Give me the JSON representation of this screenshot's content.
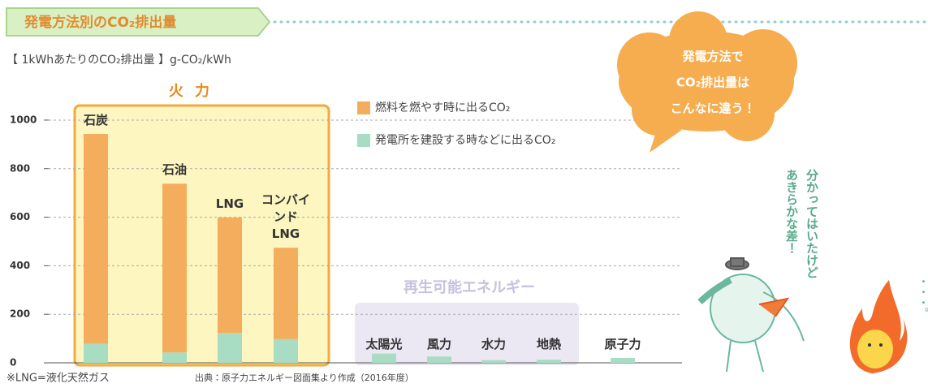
{
  "chart_data": {
    "type": "stacked_bar",
    "title": "発電方法別のCO₂排出量",
    "subtitle": "【 1kWhあたりのCO₂排出量 】g-CO₂/kWh",
    "group_labels": [
      "火力",
      "再生可能エネルギー"
    ],
    "categories": [
      "石炭",
      "石油",
      "LNG",
      "コンバインドLNG",
      "太陽光",
      "風力",
      "水力",
      "地熱",
      "原子力"
    ],
    "series": [
      {
        "name": "燃料を燃やす時に出るCO₂",
        "color": "#f4ad5c",
        "values": [
          864,
          695,
          476,
          376,
          0,
          0,
          0,
          0,
          0
        ]
      },
      {
        "name": "発電所を建設する時などに出るCO₂",
        "color": "#a8dcc3",
        "values": [
          79,
          43,
          123,
          98,
          38,
          26,
          11,
          13,
          20
        ]
      }
    ],
    "ylim": [
      0,
      1060
    ],
    "yticks": [
      0,
      200,
      400,
      600,
      800,
      1000
    ],
    "grid": true,
    "annotations": [
      "発電方法で",
      "CO₂排出量は",
      "こんなに違う！",
      "分かってはいたけど",
      "あきらかな差！",
      "・・・。"
    ],
    "footnotes": [
      "※LNG=液化天然ガス",
      "出典：原子力エネルギー図面集より作成（2016年度）"
    ]
  }
}
